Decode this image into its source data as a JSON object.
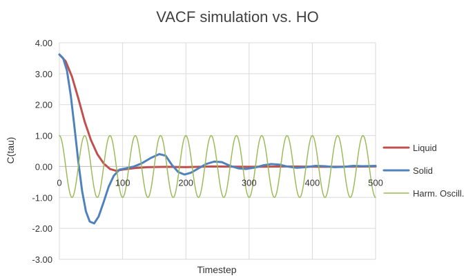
{
  "chart_data": {
    "type": "line",
    "title": "VACF simulation vs. HO",
    "xlabel": "Timestep",
    "ylabel": "C(tau)",
    "xlim": [
      0,
      500
    ],
    "ylim": [
      -3,
      4
    ],
    "x_ticks": [
      0,
      100,
      200,
      300,
      400,
      500
    ],
    "y_ticks": [
      4,
      3,
      2,
      1,
      0,
      -1,
      -2,
      -3
    ],
    "x_tick_labels": [
      "0",
      "100",
      "200",
      "300",
      "400",
      "500"
    ],
    "y_tick_labels": [
      "4.00",
      "3.00",
      "2.00",
      "1.00",
      "0.00",
      "-1.00",
      "-2.00",
      "-3.00"
    ],
    "grid": true,
    "legend": "right",
    "series": [
      {
        "name": "Liquid",
        "color": "#c0504d",
        "points": [
          [
            0,
            3.62
          ],
          [
            10,
            3.4
          ],
          [
            20,
            2.9
          ],
          [
            30,
            2.2
          ],
          [
            40,
            1.45
          ],
          [
            50,
            0.85
          ],
          [
            60,
            0.4
          ],
          [
            70,
            0.1
          ],
          [
            80,
            -0.08
          ],
          [
            90,
            -0.14
          ],
          [
            100,
            -0.1
          ],
          [
            120,
            -0.05
          ],
          [
            140,
            -0.02
          ],
          [
            170,
            -0.01
          ],
          [
            200,
            -0.02
          ],
          [
            240,
            0.0
          ],
          [
            300,
            -0.01
          ],
          [
            360,
            0.0
          ],
          [
            420,
            -0.01
          ],
          [
            500,
            0.0
          ]
        ]
      },
      {
        "name": "Solid",
        "color": "#4f81bd",
        "points": [
          [
            0,
            3.62
          ],
          [
            6,
            3.5
          ],
          [
            12,
            3.1
          ],
          [
            18,
            2.3
          ],
          [
            24,
            1.25
          ],
          [
            30,
            0.15
          ],
          [
            36,
            -0.8
          ],
          [
            42,
            -1.45
          ],
          [
            48,
            -1.78
          ],
          [
            55,
            -1.84
          ],
          [
            62,
            -1.62
          ],
          [
            70,
            -1.15
          ],
          [
            78,
            -0.65
          ],
          [
            86,
            -0.3
          ],
          [
            95,
            -0.1
          ],
          [
            105,
            -0.06
          ],
          [
            118,
            0.0
          ],
          [
            130,
            0.1
          ],
          [
            145,
            0.28
          ],
          [
            158,
            0.4
          ],
          [
            168,
            0.35
          ],
          [
            178,
            0.05
          ],
          [
            188,
            -0.18
          ],
          [
            198,
            -0.26
          ],
          [
            208,
            -0.2
          ],
          [
            220,
            -0.06
          ],
          [
            232,
            0.08
          ],
          [
            245,
            0.16
          ],
          [
            257,
            0.14
          ],
          [
            270,
            0.02
          ],
          [
            283,
            -0.06
          ],
          [
            295,
            -0.08
          ],
          [
            310,
            -0.03
          ],
          [
            323,
            0.04
          ],
          [
            335,
            0.08
          ],
          [
            348,
            0.06
          ],
          [
            360,
            0.0
          ],
          [
            375,
            -0.04
          ],
          [
            390,
            -0.02
          ],
          [
            405,
            0.02
          ],
          [
            420,
            0.01
          ],
          [
            435,
            -0.02
          ],
          [
            450,
            -0.01
          ],
          [
            465,
            0.02
          ],
          [
            480,
            0.01
          ],
          [
            500,
            0.02
          ]
        ]
      },
      {
        "name": "Harm. Oscill.",
        "color": "#9bbb59",
        "amplitude": 1.0,
        "period": 40,
        "x_range": [
          0,
          500
        ]
      }
    ]
  }
}
